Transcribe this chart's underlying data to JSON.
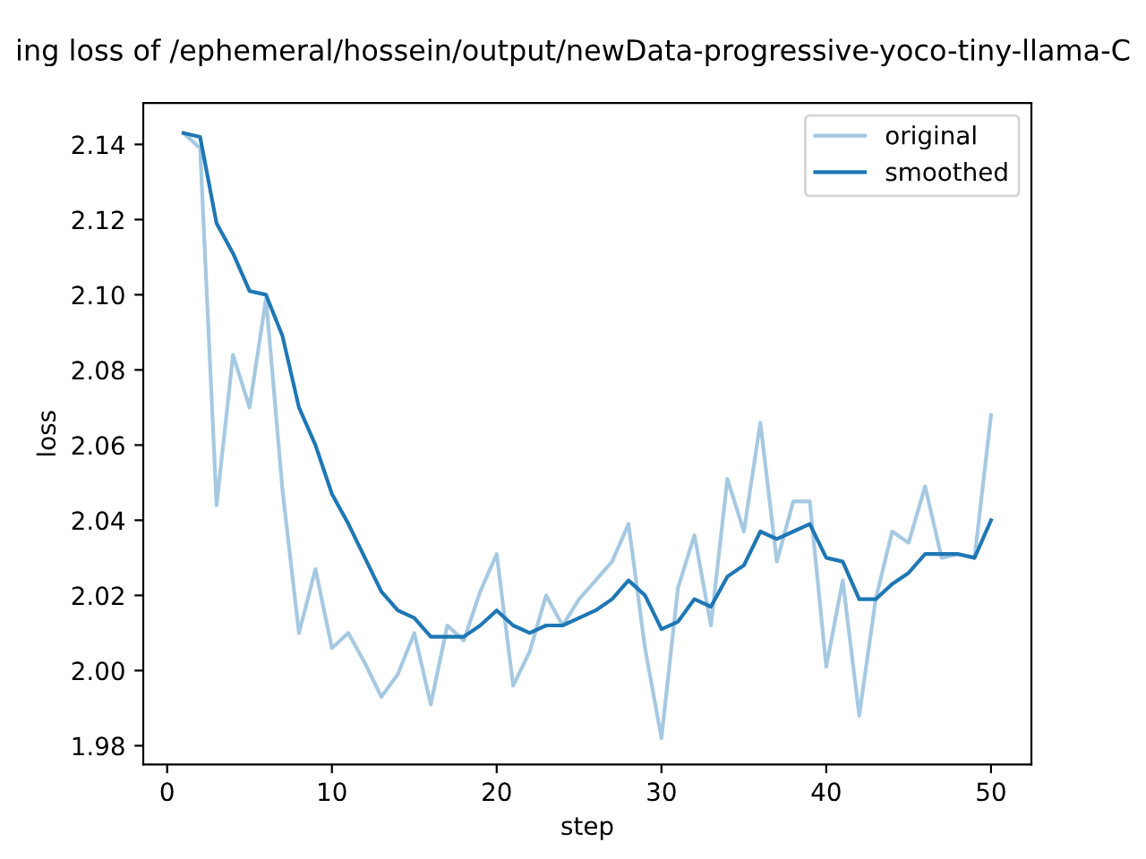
{
  "chart_data": {
    "type": "line",
    "title": "ing loss of /ephemeral/hossein/output/newData-progressive-yoco-tiny-llama-C",
    "xlabel": "step",
    "ylabel": "loss",
    "x": [
      1,
      2,
      3,
      4,
      5,
      6,
      7,
      8,
      9,
      10,
      11,
      12,
      13,
      14,
      15,
      16,
      17,
      18,
      19,
      20,
      21,
      22,
      23,
      24,
      25,
      26,
      27,
      28,
      29,
      30,
      31,
      32,
      33,
      34,
      35,
      36,
      37,
      38,
      39,
      40,
      41,
      42,
      43,
      44,
      45,
      46,
      47,
      48,
      49,
      50
    ],
    "series": [
      {
        "name": "original",
        "color": "#a6c9e2",
        "values": [
          2.143,
          2.139,
          2.044,
          2.084,
          2.07,
          2.099,
          2.048,
          2.01,
          2.027,
          2.006,
          2.01,
          2.002,
          1.993,
          1.999,
          2.01,
          1.991,
          2.012,
          2.008,
          2.021,
          2.031,
          1.996,
          2.005,
          2.02,
          2.012,
          2.019,
          2.024,
          2.029,
          2.039,
          2.006,
          1.982,
          2.022,
          2.036,
          2.012,
          2.051,
          2.037,
          2.066,
          2.029,
          2.045,
          2.045,
          2.001,
          2.024,
          1.988,
          2.019,
          2.037,
          2.034,
          2.049,
          2.03,
          2.031,
          2.03,
          2.068
        ]
      },
      {
        "name": "smoothed",
        "color": "#1f77b4",
        "values": [
          2.143,
          2.142,
          2.119,
          2.111,
          2.101,
          2.1,
          2.089,
          2.07,
          2.06,
          2.047,
          2.039,
          2.03,
          2.021,
          2.016,
          2.014,
          2.009,
          2.009,
          2.009,
          2.012,
          2.016,
          2.012,
          2.01,
          2.012,
          2.012,
          2.014,
          2.016,
          2.019,
          2.024,
          2.02,
          2.011,
          2.013,
          2.019,
          2.017,
          2.025,
          2.028,
          2.037,
          2.035,
          2.037,
          2.039,
          2.03,
          2.029,
          2.019,
          2.019,
          2.023,
          2.026,
          2.031,
          2.031,
          2.031,
          2.03,
          2.04
        ]
      }
    ],
    "xlim": [
      -1.45,
      52.45
    ],
    "ylim": [
      1.975,
      2.151
    ],
    "xticks": [
      0,
      10,
      20,
      30,
      40,
      50
    ],
    "yticks": [
      {
        "value": 1.98,
        "label": "1.98"
      },
      {
        "value": 2.0,
        "label": "2.00"
      },
      {
        "value": 2.02,
        "label": "2.02"
      },
      {
        "value": 2.04,
        "label": "2.04"
      },
      {
        "value": 2.06,
        "label": "2.06"
      },
      {
        "value": 2.08,
        "label": "2.08"
      },
      {
        "value": 2.1,
        "label": "2.10"
      },
      {
        "value": 2.12,
        "label": "2.12"
      },
      {
        "value": 2.14,
        "label": "2.14"
      }
    ],
    "legend": "top right",
    "grid": false
  }
}
